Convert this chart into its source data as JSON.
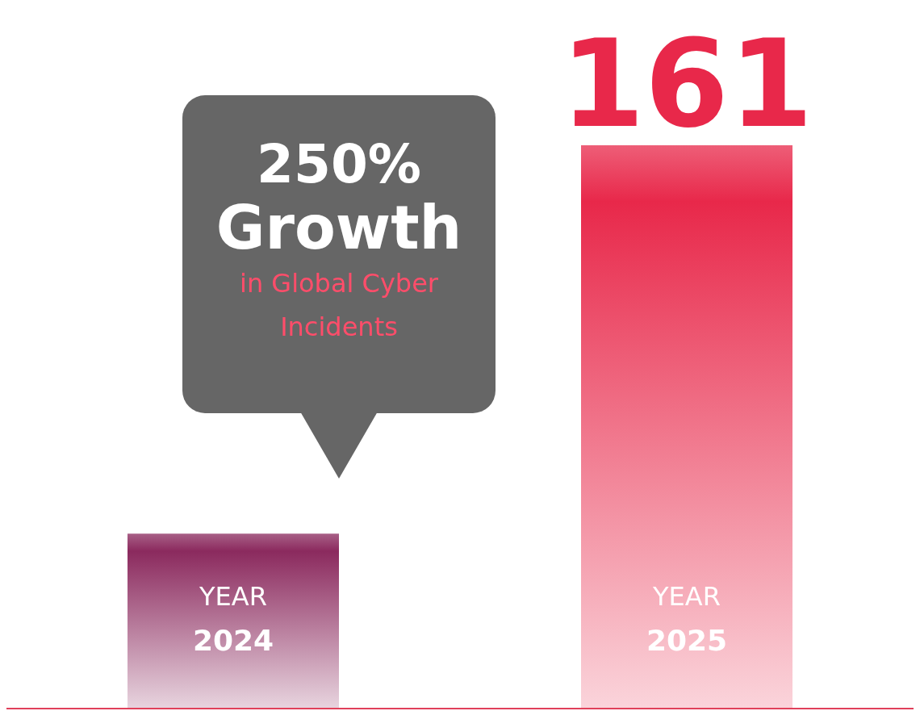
{
  "chart_data": {
    "type": "bar",
    "categories": [
      "YEAR 2024",
      "YEAR 2025"
    ],
    "values": [
      50,
      161
    ],
    "colors": [
      "#8b2a5e",
      "#e8284a"
    ],
    "value_labels": [
      null,
      "161"
    ],
    "annotations": [
      "250%",
      "Growth",
      "in Global Cyber Incidents"
    ]
  }
}
